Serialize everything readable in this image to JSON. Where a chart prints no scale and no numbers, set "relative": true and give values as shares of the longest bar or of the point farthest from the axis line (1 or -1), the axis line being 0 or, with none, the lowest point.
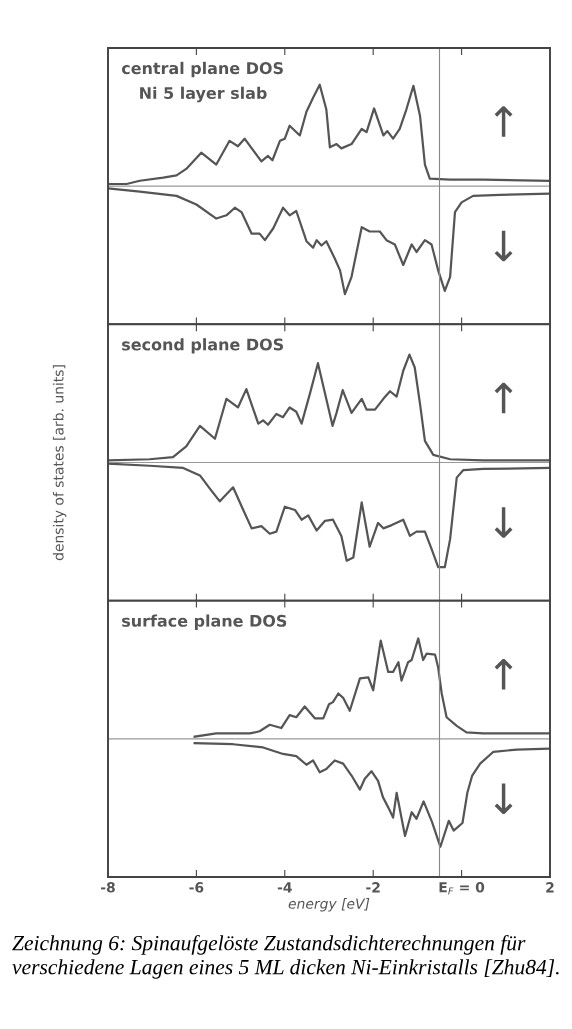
{
  "chart_data": [
    {
      "type": "line",
      "title": "central plane DOS",
      "subtitle": "Ni 5 layer slab",
      "relative": true,
      "xlim": [
        -8,
        2
      ],
      "xticks": [
        {
          "value": -6,
          "label": null
        },
        {
          "value": -4,
          "label": null
        },
        {
          "value": -2,
          "label": null
        },
        {
          "value": 0,
          "label": null
        }
      ],
      "tick_labels": false,
      "grid": false,
      "legend": false,
      "ref_lines": [
        {
          "axis": "x",
          "value": -0.5,
          "color": "#888888"
        }
      ],
      "annotations": [
        "↑",
        "↓"
      ],
      "series": [
        {
          "color": "#555555",
          "x": [
            -8.0,
            -7.58,
            -7.28,
            -6.75,
            -6.45,
            -6.23,
            -5.89,
            -5.55,
            -5.25,
            -5.06,
            -4.91,
            -4.53,
            -4.38,
            -4.28,
            -4.11,
            -4.0,
            -3.89,
            -3.66,
            -3.51,
            -3.36,
            -3.21,
            -3.06,
            -2.98,
            -2.83,
            -2.72,
            -2.49,
            -2.26,
            -2.15,
            -1.98,
            -1.77,
            -1.68,
            -1.55,
            -1.4,
            -1.25,
            -1.09,
            -0.94,
            -0.83,
            -0.72,
            -0.26,
            0.49,
            2.0
          ],
          "values": [
            0.02,
            0.02,
            0.05,
            0.08,
            0.1,
            0.16,
            0.31,
            0.2,
            0.42,
            0.37,
            0.44,
            0.23,
            0.28,
            0.24,
            0.42,
            0.44,
            0.56,
            0.47,
            0.69,
            0.82,
            0.94,
            0.71,
            0.36,
            0.39,
            0.35,
            0.39,
            0.53,
            0.5,
            0.72,
            0.47,
            0.51,
            0.44,
            0.53,
            0.71,
            0.93,
            0.65,
            0.2,
            0.07,
            0.06,
            0.06,
            0.05
          ]
        },
        {
          "color": "#555555",
          "x": [
            -8.0,
            -7.28,
            -6.45,
            -6.0,
            -5.55,
            -5.32,
            -5.13,
            -4.98,
            -4.75,
            -4.57,
            -4.45,
            -4.26,
            -4.04,
            -3.89,
            -3.74,
            -3.51,
            -3.36,
            -3.28,
            -3.17,
            -3.06,
            -2.87,
            -2.75,
            -2.64,
            -2.49,
            -2.26,
            -2.08,
            -1.85,
            -1.7,
            -1.51,
            -1.32,
            -1.13,
            -1.02,
            -0.83,
            -0.68,
            -0.53,
            -0.38,
            -0.26,
            -0.15,
            0.0,
            0.26,
            0.87,
            2.0
          ],
          "values": [
            -0.02,
            -0.05,
            -0.09,
            -0.17,
            -0.3,
            -0.27,
            -0.2,
            -0.24,
            -0.44,
            -0.44,
            -0.5,
            -0.39,
            -0.2,
            -0.27,
            -0.23,
            -0.51,
            -0.57,
            -0.5,
            -0.55,
            -0.51,
            -0.67,
            -0.78,
            -1.0,
            -0.84,
            -0.38,
            -0.42,
            -0.42,
            -0.5,
            -0.54,
            -0.73,
            -0.54,
            -0.61,
            -0.5,
            -0.54,
            -0.78,
            -0.97,
            -0.84,
            -0.24,
            -0.15,
            -0.09,
            -0.08,
            -0.07
          ]
        }
      ]
    },
    {
      "type": "line",
      "title": "second plane DOS",
      "ylabel": "density of states [arb. units]",
      "relative": true,
      "xlim": [
        -8,
        2
      ],
      "xticks": [
        {
          "value": -6,
          "label": null
        },
        {
          "value": -4,
          "label": null
        },
        {
          "value": -2,
          "label": null
        },
        {
          "value": 0,
          "label": null
        }
      ],
      "tick_labels": false,
      "grid": false,
      "legend": false,
      "ref_lines": [
        {
          "axis": "x",
          "value": -0.5,
          "color": "#888888"
        }
      ],
      "annotations": [
        "↑",
        "↓"
      ],
      "series": [
        {
          "color": "#555555",
          "x": [
            -8.0,
            -7.06,
            -6.53,
            -6.23,
            -5.92,
            -5.58,
            -5.32,
            -5.06,
            -4.87,
            -4.6,
            -4.49,
            -4.38,
            -4.19,
            -4.04,
            -3.89,
            -3.74,
            -3.62,
            -3.43,
            -3.25,
            -3.09,
            -2.92,
            -2.83,
            -2.69,
            -2.49,
            -2.26,
            -2.15,
            -1.96,
            -1.77,
            -1.62,
            -1.47,
            -1.32,
            -1.18,
            -1.06,
            -0.94,
            -0.83,
            -0.64,
            -0.26,
            0.49,
            2.0
          ],
          "values": [
            0.02,
            0.03,
            0.05,
            0.15,
            0.34,
            0.22,
            0.59,
            0.51,
            0.68,
            0.36,
            0.39,
            0.35,
            0.45,
            0.42,
            0.51,
            0.47,
            0.36,
            0.64,
            0.92,
            0.64,
            0.34,
            0.46,
            0.67,
            0.46,
            0.59,
            0.49,
            0.49,
            0.59,
            0.66,
            0.61,
            0.85,
            1.0,
            0.88,
            0.54,
            0.2,
            0.07,
            0.03,
            0.02,
            0.02
          ]
        },
        {
          "color": "#555555",
          "x": [
            -8.0,
            -7.06,
            -6.3,
            -5.92,
            -5.7,
            -5.47,
            -5.17,
            -4.94,
            -4.75,
            -4.53,
            -4.34,
            -4.19,
            -4.0,
            -3.77,
            -3.62,
            -3.47,
            -3.28,
            -3.09,
            -2.91,
            -2.72,
            -2.6,
            -2.45,
            -2.26,
            -2.08,
            -1.89,
            -1.77,
            -1.58,
            -1.32,
            -1.17,
            -1.02,
            -0.83,
            -0.68,
            -0.53,
            -0.38,
            -0.26,
            -0.11,
            0.04,
            0.49,
            2.0
          ],
          "values": [
            -0.01,
            -0.03,
            -0.05,
            -0.12,
            -0.24,
            -0.36,
            -0.23,
            -0.44,
            -0.61,
            -0.59,
            -0.66,
            -0.64,
            -0.41,
            -0.44,
            -0.53,
            -0.49,
            -0.63,
            -0.54,
            -0.53,
            -0.68,
            -0.91,
            -0.88,
            -0.37,
            -0.78,
            -0.56,
            -0.61,
            -0.58,
            -0.53,
            -0.68,
            -0.64,
            -0.64,
            -0.8,
            -0.97,
            -0.97,
            -0.71,
            -0.14,
            -0.07,
            -0.06,
            -0.05
          ]
        }
      ]
    },
    {
      "type": "line",
      "title": "surface plane DOS",
      "xlabel": "energy [eV]",
      "relative": true,
      "xlim": [
        -8,
        2
      ],
      "xticks": [
        -8,
        -6,
        -4,
        -2,
        {
          "value": 0,
          "label": "E$_{F}$ = 0"
        },
        2
      ],
      "tick_labels": "x",
      "grid": false,
      "legend": false,
      "ref_lines": [
        {
          "axis": "x",
          "value": -0.5,
          "color": "#888888"
        }
      ],
      "annotations": [
        "↑",
        "↓",
        "Zeichnung 6: Spinaufgelöste Zustandsdichterechnungen für verschiedene Lagen eines 5 ML dicken Ni-Einkristalls [Zhu84]."
      ],
      "series": [
        {
          "color": "#555555",
          "x": [
            -6.04,
            -5.55,
            -4.79,
            -4.57,
            -4.34,
            -4.08,
            -3.89,
            -3.74,
            -3.55,
            -3.32,
            -3.13,
            -3.0,
            -2.91,
            -2.79,
            -2.68,
            -2.53,
            -2.3,
            -2.11,
            -2.0,
            -1.83,
            -1.66,
            -1.55,
            -1.43,
            -1.36,
            -1.21,
            -1.13,
            -0.98,
            -0.87,
            -0.79,
            -0.6,
            -0.53,
            -0.45,
            -0.34,
            -0.11,
            0.11,
            0.49,
            2.0
          ],
          "values": [
            0.02,
            0.05,
            0.05,
            0.07,
            0.13,
            0.1,
            0.22,
            0.2,
            0.3,
            0.19,
            0.19,
            0.32,
            0.34,
            0.42,
            0.38,
            0.26,
            0.56,
            0.57,
            0.45,
            0.91,
            0.62,
            0.62,
            0.71,
            0.54,
            0.71,
            0.73,
            0.93,
            0.73,
            0.79,
            0.78,
            0.66,
            0.42,
            0.2,
            0.12,
            0.06,
            0.05,
            0.05
          ]
        },
        {
          "color": "#555555",
          "x": [
            -6.04,
            -5.17,
            -4.49,
            -4.04,
            -3.74,
            -3.51,
            -3.36,
            -3.21,
            -3.06,
            -2.87,
            -2.68,
            -2.49,
            -2.3,
            -2.19,
            -2.04,
            -1.89,
            -1.78,
            -1.63,
            -1.55,
            -1.47,
            -1.28,
            -1.13,
            -1.02,
            -0.86,
            -0.67,
            -0.48,
            -0.29,
            -0.18,
            0.02,
            0.13,
            0.24,
            0.42,
            0.72,
            1.25,
            2.0
          ],
          "values": [
            -0.04,
            -0.05,
            -0.08,
            -0.14,
            -0.16,
            -0.24,
            -0.2,
            -0.31,
            -0.28,
            -0.2,
            -0.23,
            -0.34,
            -0.47,
            -0.37,
            -0.3,
            -0.39,
            -0.54,
            -0.66,
            -0.73,
            -0.5,
            -0.9,
            -0.68,
            -0.74,
            -0.58,
            -0.77,
            -1.0,
            -0.76,
            -0.85,
            -0.78,
            -0.5,
            -0.34,
            -0.23,
            -0.12,
            -0.1,
            -0.09
          ]
        }
      ]
    }
  ]
}
